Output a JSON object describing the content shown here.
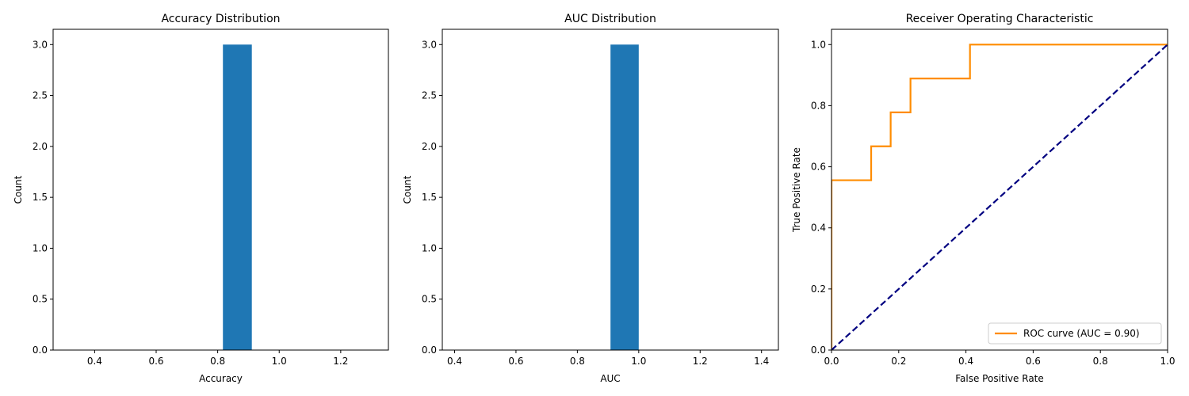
{
  "chart_data": [
    {
      "type": "bar",
      "title": "Accuracy Distribution",
      "xlabel": "Accuracy",
      "ylabel": "Count",
      "xlim": [
        0.265,
        1.355
      ],
      "ylim": [
        0,
        3.15
      ],
      "xticks": [
        0.4,
        0.6,
        0.8,
        1.0,
        1.2
      ],
      "xtick_labels": [
        "0.4",
        "0.6",
        "0.8",
        "1.0",
        "1.2"
      ],
      "yticks": [
        0,
        0.5,
        1,
        1.5,
        2,
        2.5,
        3
      ],
      "ytick_labels": [
        "0.0",
        "0.5",
        "1.0",
        "1.5",
        "2.0",
        "2.5",
        "3.0"
      ],
      "bars": [
        {
          "x0": 0.817,
          "x1": 0.911,
          "value": 3
        }
      ],
      "color": "#1f77b4"
    },
    {
      "type": "bar",
      "title": "AUC Distribution",
      "xlabel": "AUC",
      "ylabel": "Count",
      "xlim": [
        0.36,
        1.455
      ],
      "ylim": [
        0,
        3.15
      ],
      "xticks": [
        0.4,
        0.6,
        0.8,
        1.0,
        1.2,
        1.4
      ],
      "xtick_labels": [
        "0.4",
        "0.6",
        "0.8",
        "1.0",
        "1.2",
        "1.4"
      ],
      "yticks": [
        0,
        0.5,
        1,
        1.5,
        2,
        2.5,
        3
      ],
      "ytick_labels": [
        "0.0",
        "0.5",
        "1.0",
        "1.5",
        "2.0",
        "2.5",
        "3.0"
      ],
      "bars": [
        {
          "x0": 0.908,
          "x1": 1.0,
          "value": 3
        }
      ],
      "color": "#1f77b4"
    },
    {
      "type": "line",
      "title": "Receiver Operating Characteristic",
      "xlabel": "False Positive Rate",
      "ylabel": "True Positive Rate",
      "xlim": [
        0,
        1
      ],
      "ylim": [
        0,
        1.05
      ],
      "xticks": [
        0,
        0.2,
        0.4,
        0.6,
        0.8,
        1.0
      ],
      "xtick_labels": [
        "0.0",
        "0.2",
        "0.4",
        "0.6",
        "0.8",
        "1.0"
      ],
      "yticks": [
        0,
        0.2,
        0.4,
        0.6,
        0.8,
        1.0
      ],
      "ytick_labels": [
        "0.0",
        "0.2",
        "0.4",
        "0.6",
        "0.8",
        "1.0"
      ],
      "legend_position": "lower-right",
      "series": [
        {
          "name": "ROC curve (AUC = 0.90)",
          "color": "#ff8c00",
          "style": "solid",
          "x": [
            0,
            0,
            0.118,
            0.118,
            0.176,
            0.176,
            0.235,
            0.235,
            0.412,
            0.412,
            1.0
          ],
          "y": [
            0,
            0.556,
            0.556,
            0.667,
            0.667,
            0.778,
            0.778,
            0.889,
            0.889,
            1.0,
            1.0
          ]
        },
        {
          "color": "#000080",
          "style": "dashed",
          "x": [
            0,
            1
          ],
          "y": [
            0,
            1
          ]
        }
      ]
    }
  ]
}
